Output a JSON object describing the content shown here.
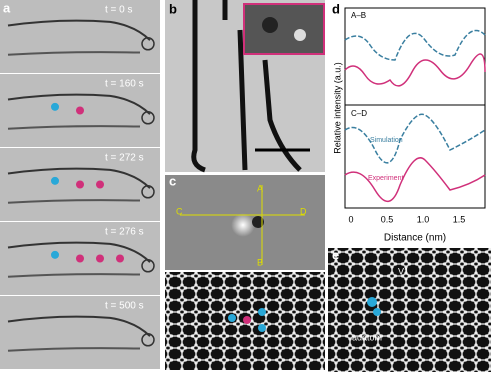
{
  "panels": {
    "a": {
      "label": "a",
      "frames": [
        "t = 0 s",
        "t = 160 s",
        "t = 272 s",
        "t = 276 s",
        "t = 500 s"
      ]
    },
    "b": {
      "label": "b"
    },
    "c": {
      "label": "c",
      "markers": [
        "A",
        "B",
        "C",
        "D"
      ]
    },
    "d": {
      "label": "d",
      "top_title": "A–B",
      "bottom_title": "C–D",
      "legend": [
        "Simulation",
        "Experiment"
      ],
      "y_label": "Relative intensity (a.u.)",
      "x_label": "Distance (nm)",
      "x_ticks": [
        "0",
        "0.5",
        "1.0",
        "1.5"
      ]
    },
    "e": {
      "label": "e",
      "annotations": [
        "V1",
        "adatom"
      ]
    }
  }
}
